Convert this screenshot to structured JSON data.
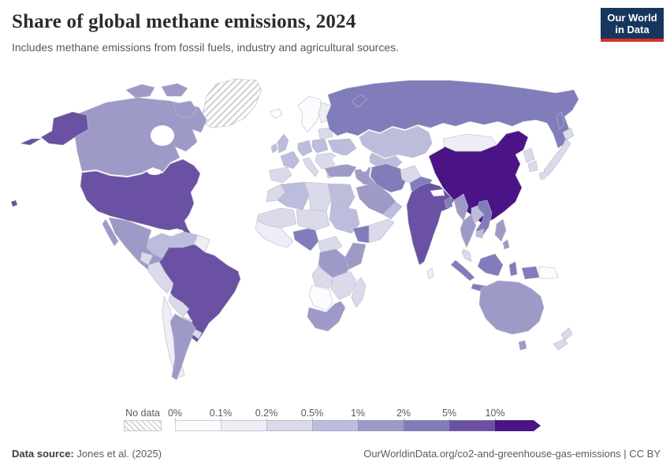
{
  "header": {
    "title": "Share of global methane emissions, 2024",
    "subtitle": "Includes methane emissions from fossil fuels, industry and agricultural sources.",
    "logo_line1": "Our World",
    "logo_line2": "in Data"
  },
  "legend": {
    "no_data_label": "No data",
    "tick_labels": [
      "0%",
      "0.1%",
      "0.2%",
      "0.5%",
      "1%",
      "2%",
      "5%",
      "10%"
    ]
  },
  "footer": {
    "source_label": "Data source:",
    "source_value": "Jones et al. (2025)",
    "citation": "OurWorldinData.org/co2-and-greenhouse-gas-emissions",
    "separator": "|",
    "license": "CC BY"
  },
  "colors": {
    "logo_bg": "#18365d",
    "logo_accent": "#dc2e27",
    "country_border": "#b9b9c9"
  },
  "chart_data": {
    "type": "choropleth-map",
    "title": "Share of global methane emissions, 2024",
    "unit": "share of global methane emissions",
    "legend_ticks": [
      "0%",
      "0.1%",
      "0.2%",
      "0.5%",
      "1%",
      "2%",
      "5%",
      "10%"
    ],
    "bins": [
      {
        "label": "0–0.1%",
        "color": "#fcfbfd"
      },
      {
        "label": "0.1–0.2%",
        "color": "#efedf5"
      },
      {
        "label": "0.2–0.5%",
        "color": "#dadaeb"
      },
      {
        "label": "0.5–1%",
        "color": "#bcbddc"
      },
      {
        "label": "1–2%",
        "color": "#9e9ac8"
      },
      {
        "label": "2–5%",
        "color": "#807dba"
      },
      {
        "label": "5–10%",
        "color": "#6a51a3"
      },
      {
        "label": ">10%",
        "color": "#4a1486"
      }
    ],
    "no_data": {
      "label": "No data",
      "pattern": "diagonal-hatch"
    },
    "regions": {
      "greenland": "No data",
      "canada": "1–2%",
      "arctic-islands-a": "1–2%",
      "arctic-islands-b": "1–2%",
      "baffin": "1–2%",
      "alaska": "5–10%",
      "aleutians": "5–10%",
      "usa": "5–10%",
      "hawaii": "5–10%",
      "mexico": "1–2%",
      "baja": "1–2%",
      "central-america": "0.1–0.2%",
      "cuba": "0.2–0.5%",
      "hispaniola": "0.2–0.5%",
      "colombia": "0.5–1%",
      "venezuela": "0.5–1%",
      "guyanas": "0.1–0.2%",
      "ecuador": "0.2–0.5%",
      "peru": "0.2–0.5%",
      "brazil": "5–10%",
      "bolivia": "0.2–0.5%",
      "paraguay": "0.2–0.5%",
      "chile": "0.1–0.2%",
      "argentina": "1–2%",
      "uruguay": "0.2–0.5%",
      "iceland": "0–0.1%",
      "norway-sweden": "0–0.1%",
      "finland": "0.1–0.2%",
      "baltics-belarus": "0.2–0.5%",
      "uk": "0.5–1%",
      "ireland": "0.5–1%",
      "france": "0.5–1%",
      "spain": "0.2–0.5%",
      "germany": "0.5–1%",
      "poland": "0.5–1%",
      "ukraine": "0.5–1%",
      "romania-balkans": "0.2–0.5%",
      "italy": "0.2–0.5%",
      "greece": "0.2–0.5%",
      "turkey": "1–2%",
      "russia": "2–5%",
      "novaya-zemlya": "2–5%",
      "sakhalin": "2–5%",
      "kazakhstan": "0.5–1%",
      "uzbek-turkmen": "0.5–1%",
      "mongolia": "0.1–0.2%",
      "china": ">10%",
      "north-korea": "0.2–0.5%",
      "south-korea": "0.2–0.5%",
      "japan": "0.2–0.5%",
      "afghanistan": "0.2–0.5%",
      "pakistan": "2–5%",
      "iran": "2–5%",
      "iraq-syria": "1–2%",
      "saudi-arabia": "1–2%",
      "yemen-oman": "0.5–1%",
      "india": "5–10%",
      "nepal": "0–0.1%",
      "bangladesh": "2–5%",
      "sri-lanka": "0.1–0.2%",
      "myanmar": "1–2%",
      "thailand": "1–2%",
      "laos": "0.5–1%",
      "vietnam": "2–5%",
      "cambodia": "0.5–1%",
      "malay-peninsula": "0.2–0.5%",
      "sumatra": "2–5%",
      "java": "2–5%",
      "borneo": "2–5%",
      "sulawesi": "2–5%",
      "west-papua": "2–5%",
      "papua-new-guinea": "0–0.1%",
      "philippines": "1–2%",
      "australia": "1–2%",
      "tasmania": "1–2%",
      "new-zealand": "0.2–0.5%",
      "morocco": "0.2–0.5%",
      "algeria": "0.5–1%",
      "libya": "0.2–0.5%",
      "egypt": "0.5–1%",
      "mauritania-mali": "0.2–0.5%",
      "niger-chad": "0.2–0.5%",
      "sudan": "0.5–1%",
      "west-africa": "0.1–0.2%",
      "nigeria": "2–5%",
      "cameroon-car": "0.2–0.5%",
      "ethiopia": "2–5%",
      "somalia": "0.2–0.5%",
      "kenya-tanzania": "1–2%",
      "drc": "1–2%",
      "angola": "0.2–0.5%",
      "zambia-mozambique": "0.2–0.5%",
      "namibia-botswana": "0–0.1%",
      "south-africa": "1–2%",
      "madagascar": "0.2–0.5%"
    }
  }
}
